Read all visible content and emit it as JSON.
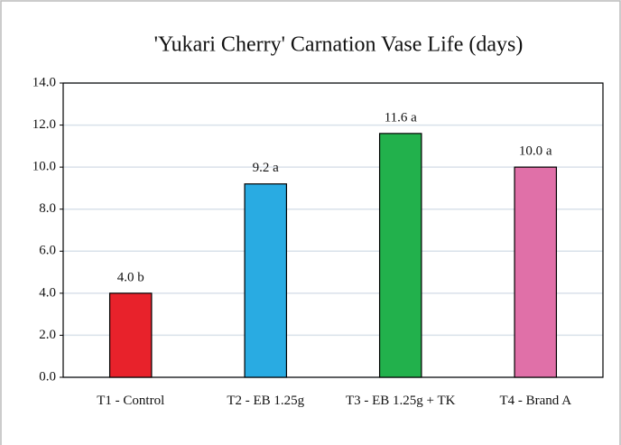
{
  "chart_data": {
    "type": "bar",
    "title": "'Yukari Cherry' Carnation Vase Life (days)",
    "categories": [
      "T1 - Control",
      "T2 - EB 1.25g",
      "T3 - EB 1.25g + TK",
      "T4 - Brand A"
    ],
    "values": [
      4.0,
      9.2,
      11.6,
      10.0
    ],
    "value_labels": [
      "4.0 b",
      "9.2 a",
      "11.6 a",
      "10.0 a"
    ],
    "colors": [
      "#e8222b",
      "#29abe2",
      "#22b14c",
      "#e070a8"
    ],
    "ylim": [
      0,
      14
    ],
    "yticks": [
      {
        "value": 0,
        "label": "0.0"
      },
      {
        "value": 2,
        "label": "2.0"
      },
      {
        "value": 4,
        "label": "4.0"
      },
      {
        "value": 6,
        "label": "6.0"
      },
      {
        "value": 8,
        "label": "8.0"
      },
      {
        "value": 10,
        "label": "10.0"
      },
      {
        "value": 12,
        "label": "12.0"
      },
      {
        "value": 14,
        "label": "14.0"
      }
    ],
    "grid": true
  }
}
